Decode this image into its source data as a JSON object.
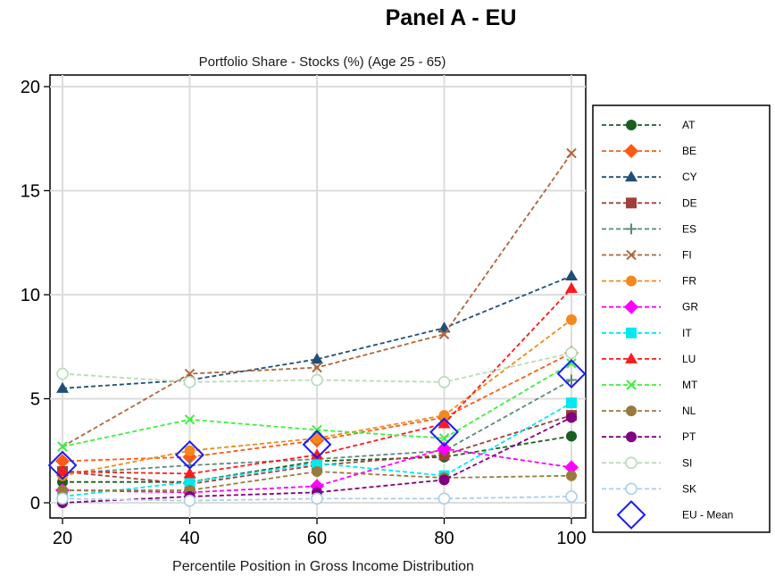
{
  "panel_title": "Panel A - EU",
  "chart_data": {
    "type": "line",
    "title": "Portfolio Share - Stocks (%) (Age 25 - 65)",
    "xlabel": "Percentile Position in Gross Income Distribution",
    "ylabel": "",
    "x": [
      20,
      40,
      60,
      80,
      100
    ],
    "xticks": [
      "20",
      "40",
      "60",
      "80",
      "100"
    ],
    "yticks": [
      "0",
      "5",
      "10",
      "15",
      "20"
    ],
    "xlim": [
      20,
      100
    ],
    "ylim": [
      0,
      20
    ],
    "grid": true,
    "legend_position": "right",
    "series": [
      {
        "name": "AT",
        "color": "#1b5e20",
        "marker": "circle",
        "values": [
          1.0,
          1.0,
          2.0,
          2.2,
          3.2
        ]
      },
      {
        "name": "BE",
        "color": "#ff5a14",
        "marker": "diamond",
        "values": [
          2.0,
          2.2,
          3.0,
          4.1,
          7.2
        ]
      },
      {
        "name": "CY",
        "color": "#1f4e79",
        "marker": "triangle",
        "values": [
          5.5,
          5.9,
          6.9,
          8.4,
          10.9
        ]
      },
      {
        "name": "DE",
        "color": "#a0403a",
        "marker": "square",
        "values": [
          1.5,
          0.9,
          1.8,
          2.3,
          4.2
        ]
      },
      {
        "name": "ES",
        "color": "#5b8a7a",
        "marker": "plus",
        "values": [
          1.4,
          1.8,
          2.1,
          2.5,
          5.9
        ]
      },
      {
        "name": "FI",
        "color": "#b0643c",
        "marker": "x",
        "values": [
          2.7,
          6.2,
          6.5,
          8.1,
          16.8
        ]
      },
      {
        "name": "FR",
        "color": "#f2891a",
        "marker": "circle",
        "values": [
          1.3,
          2.5,
          3.1,
          4.2,
          8.8
        ]
      },
      {
        "name": "GR",
        "color": "#ff00ff",
        "marker": "diamond",
        "values": [
          0.6,
          0.5,
          0.8,
          2.6,
          1.7
        ]
      },
      {
        "name": "IT",
        "color": "#00e8f0",
        "marker": "square",
        "values": [
          0.3,
          1.0,
          1.9,
          1.3,
          4.8
        ]
      },
      {
        "name": "LU",
        "color": "#ff1a1a",
        "marker": "triangle",
        "values": [
          1.5,
          1.4,
          2.3,
          3.8,
          10.3
        ]
      },
      {
        "name": "MT",
        "color": "#3cf03c",
        "marker": "x",
        "values": [
          2.7,
          4.0,
          3.5,
          3.1,
          6.7
        ]
      },
      {
        "name": "NL",
        "color": "#9a7a3c",
        "marker": "circle",
        "values": [
          0.6,
          0.6,
          1.5,
          1.2,
          1.3
        ]
      },
      {
        "name": "PT",
        "color": "#800080",
        "marker": "circle",
        "values": [
          0.0,
          0.3,
          0.5,
          1.1,
          4.1
        ]
      },
      {
        "name": "SI",
        "color": "#b8dbb8",
        "marker": "hollow-circle",
        "values": [
          6.2,
          5.8,
          5.9,
          5.8,
          7.2
        ]
      },
      {
        "name": "SK",
        "color": "#a8cfe8",
        "marker": "hollow-circle",
        "values": [
          0.2,
          0.1,
          0.2,
          0.2,
          0.3
        ]
      },
      {
        "name": "EU - Mean",
        "color": "#1a1aff",
        "marker": "hollow-diamond-large",
        "line": false,
        "values": [
          1.8,
          2.3,
          2.8,
          3.4,
          6.2
        ]
      }
    ]
  }
}
